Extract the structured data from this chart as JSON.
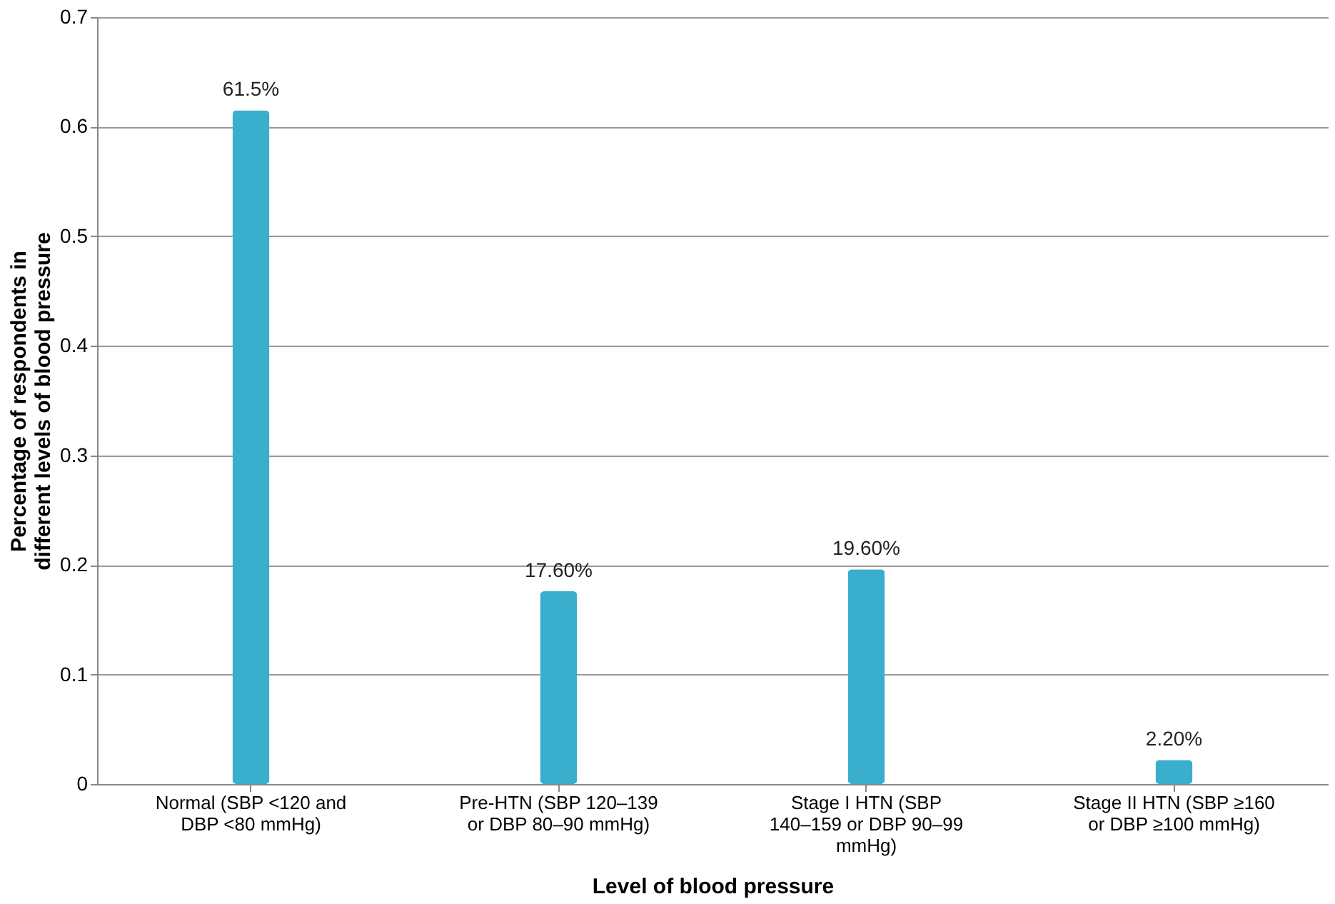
{
  "chart_data": {
    "type": "bar",
    "xlabel": "Level of blood pressure",
    "ylabel": "Percentage of respondents in different levels of blood pressure",
    "categories": [
      "Normal (SBP <120 and DBP <80 mmHg)",
      "Pre-HTN (SBP 120–139 or DBP 80–90 mmHg)",
      "Stage I HTN (SBP 140–159 or DBP 90–99 mmHg)",
      "Stage II HTN (SBP ≥160 or DBP ≥100 mmHg)"
    ],
    "values": [
      0.615,
      0.176,
      0.196,
      0.022
    ],
    "value_labels": [
      "61.5%",
      "17.60%",
      "19.60%",
      "2.20%"
    ],
    "color": "#3aaecd",
    "ylim": [
      0,
      0.7
    ],
    "yticks": [
      0,
      0.1,
      0.2,
      0.3,
      0.4,
      0.5,
      0.6,
      0.7
    ],
    "grid": "y"
  }
}
